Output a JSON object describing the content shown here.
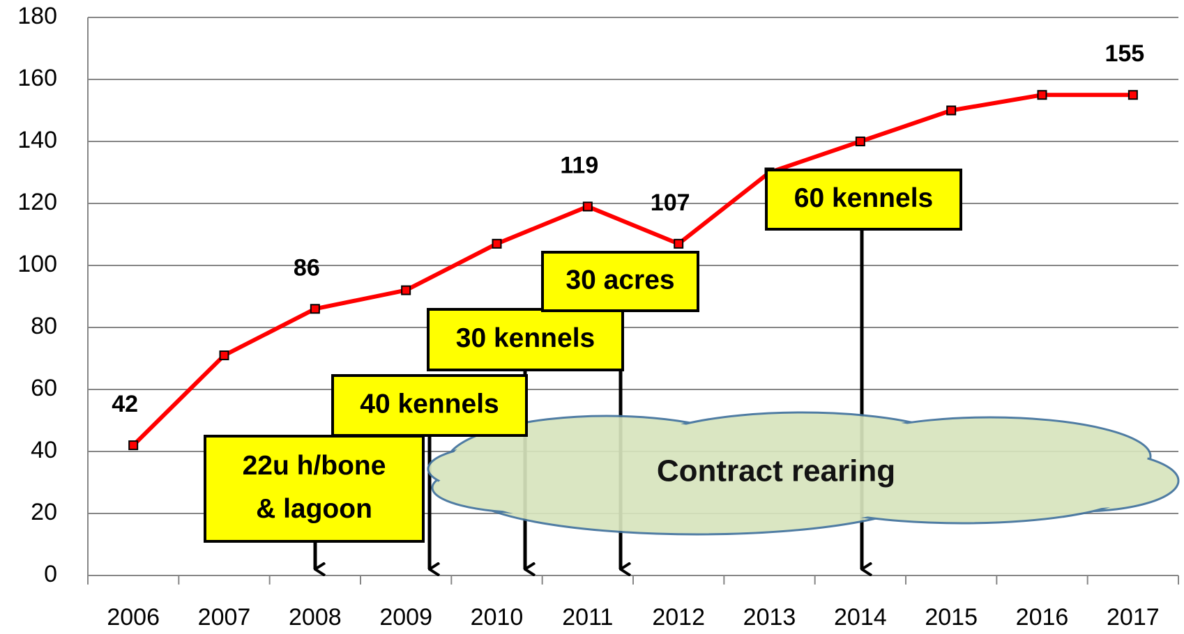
{
  "chart_data": {
    "type": "line",
    "categories": [
      "2006",
      "2007",
      "2008",
      "2009",
      "2010",
      "2011",
      "2012",
      "2013",
      "2014",
      "2015",
      "2016",
      "2017"
    ],
    "values": [
      42,
      71,
      86,
      92,
      107,
      119,
      107,
      130,
      140,
      150,
      155,
      155
    ],
    "value_labels": [
      "42",
      null,
      "86",
      null,
      null,
      "119",
      "107",
      null,
      null,
      null,
      null,
      "155"
    ],
    "color": "#ff0000",
    "ylim": [
      0,
      180
    ],
    "yticks": [
      0,
      20,
      40,
      60,
      80,
      100,
      120,
      140,
      160,
      180
    ],
    "grid": true,
    "annotations": [
      {
        "text": [
          "22u h/bone",
          "& lagoon"
        ]
      },
      {
        "text": [
          "40 kennels"
        ]
      },
      {
        "text": [
          "30 kennels"
        ]
      },
      {
        "text": [
          "30 acres"
        ]
      },
      {
        "text": [
          "60 kennels"
        ]
      },
      {
        "text": [
          "Contract rearing"
        ]
      }
    ]
  }
}
